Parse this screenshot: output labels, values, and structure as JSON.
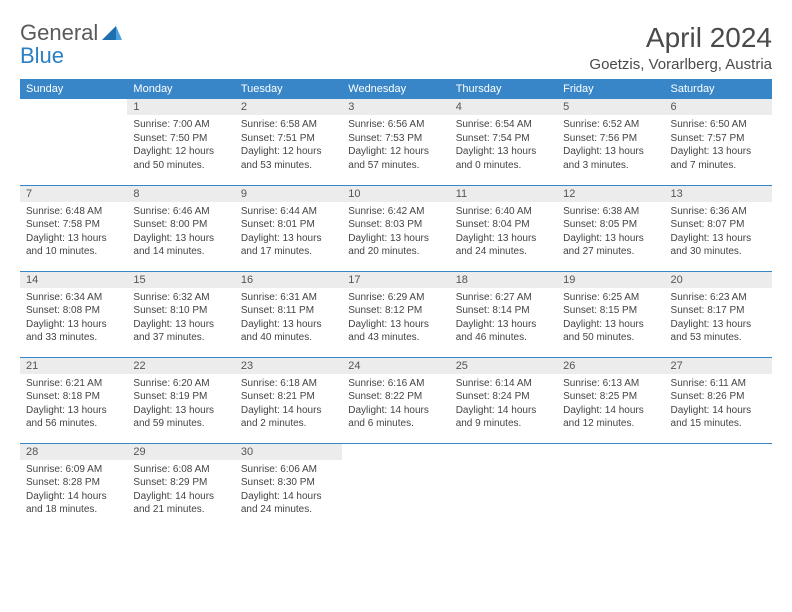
{
  "brand": {
    "part1": "General",
    "part2": "Blue"
  },
  "title": "April 2024",
  "location": "Goetzis, Vorarlberg, Austria",
  "colors": {
    "header_bg": "#3886c8",
    "header_text": "#ffffff",
    "daynum_bg": "#ececec",
    "rule": "#3886c8",
    "logo_gray": "#5a5a5a",
    "logo_blue": "#2b7fc3"
  },
  "day_names": [
    "Sunday",
    "Monday",
    "Tuesday",
    "Wednesday",
    "Thursday",
    "Friday",
    "Saturday"
  ],
  "layout": {
    "first_weekday_index": 1,
    "days_in_month": 30
  },
  "days": {
    "1": {
      "sunrise": "7:00 AM",
      "sunset": "7:50 PM",
      "daylight": "12 hours and 50 minutes."
    },
    "2": {
      "sunrise": "6:58 AM",
      "sunset": "7:51 PM",
      "daylight": "12 hours and 53 minutes."
    },
    "3": {
      "sunrise": "6:56 AM",
      "sunset": "7:53 PM",
      "daylight": "12 hours and 57 minutes."
    },
    "4": {
      "sunrise": "6:54 AM",
      "sunset": "7:54 PM",
      "daylight": "13 hours and 0 minutes."
    },
    "5": {
      "sunrise": "6:52 AM",
      "sunset": "7:56 PM",
      "daylight": "13 hours and 3 minutes."
    },
    "6": {
      "sunrise": "6:50 AM",
      "sunset": "7:57 PM",
      "daylight": "13 hours and 7 minutes."
    },
    "7": {
      "sunrise": "6:48 AM",
      "sunset": "7:58 PM",
      "daylight": "13 hours and 10 minutes."
    },
    "8": {
      "sunrise": "6:46 AM",
      "sunset": "8:00 PM",
      "daylight": "13 hours and 14 minutes."
    },
    "9": {
      "sunrise": "6:44 AM",
      "sunset": "8:01 PM",
      "daylight": "13 hours and 17 minutes."
    },
    "10": {
      "sunrise": "6:42 AM",
      "sunset": "8:03 PM",
      "daylight": "13 hours and 20 minutes."
    },
    "11": {
      "sunrise": "6:40 AM",
      "sunset": "8:04 PM",
      "daylight": "13 hours and 24 minutes."
    },
    "12": {
      "sunrise": "6:38 AM",
      "sunset": "8:05 PM",
      "daylight": "13 hours and 27 minutes."
    },
    "13": {
      "sunrise": "6:36 AM",
      "sunset": "8:07 PM",
      "daylight": "13 hours and 30 minutes."
    },
    "14": {
      "sunrise": "6:34 AM",
      "sunset": "8:08 PM",
      "daylight": "13 hours and 33 minutes."
    },
    "15": {
      "sunrise": "6:32 AM",
      "sunset": "8:10 PM",
      "daylight": "13 hours and 37 minutes."
    },
    "16": {
      "sunrise": "6:31 AM",
      "sunset": "8:11 PM",
      "daylight": "13 hours and 40 minutes."
    },
    "17": {
      "sunrise": "6:29 AM",
      "sunset": "8:12 PM",
      "daylight": "13 hours and 43 minutes."
    },
    "18": {
      "sunrise": "6:27 AM",
      "sunset": "8:14 PM",
      "daylight": "13 hours and 46 minutes."
    },
    "19": {
      "sunrise": "6:25 AM",
      "sunset": "8:15 PM",
      "daylight": "13 hours and 50 minutes."
    },
    "20": {
      "sunrise": "6:23 AM",
      "sunset": "8:17 PM",
      "daylight": "13 hours and 53 minutes."
    },
    "21": {
      "sunrise": "6:21 AM",
      "sunset": "8:18 PM",
      "daylight": "13 hours and 56 minutes."
    },
    "22": {
      "sunrise": "6:20 AM",
      "sunset": "8:19 PM",
      "daylight": "13 hours and 59 minutes."
    },
    "23": {
      "sunrise": "6:18 AM",
      "sunset": "8:21 PM",
      "daylight": "14 hours and 2 minutes."
    },
    "24": {
      "sunrise": "6:16 AM",
      "sunset": "8:22 PM",
      "daylight": "14 hours and 6 minutes."
    },
    "25": {
      "sunrise": "6:14 AM",
      "sunset": "8:24 PM",
      "daylight": "14 hours and 9 minutes."
    },
    "26": {
      "sunrise": "6:13 AM",
      "sunset": "8:25 PM",
      "daylight": "14 hours and 12 minutes."
    },
    "27": {
      "sunrise": "6:11 AM",
      "sunset": "8:26 PM",
      "daylight": "14 hours and 15 minutes."
    },
    "28": {
      "sunrise": "6:09 AM",
      "sunset": "8:28 PM",
      "daylight": "14 hours and 18 minutes."
    },
    "29": {
      "sunrise": "6:08 AM",
      "sunset": "8:29 PM",
      "daylight": "14 hours and 21 minutes."
    },
    "30": {
      "sunrise": "6:06 AM",
      "sunset": "8:30 PM",
      "daylight": "14 hours and 24 minutes."
    }
  },
  "labels": {
    "sunrise": "Sunrise:",
    "sunset": "Sunset:",
    "daylight": "Daylight:"
  }
}
